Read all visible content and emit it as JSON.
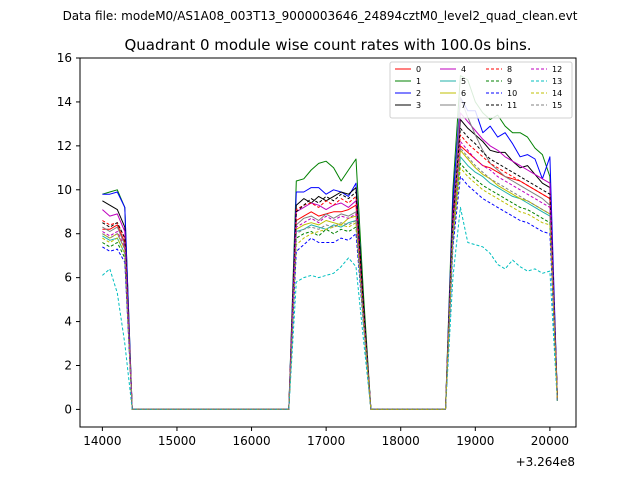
{
  "figure": {
    "suptitle": "Data file: modeM0/AS1A08_003T13_9000003646_24894cztM0_level2_quad_clean.evt",
    "offset_label": "+3.264e8"
  },
  "chart_data": {
    "type": "line",
    "title": "Quadrant 0 module wise count rates with 100.0s bins.",
    "xlabel": "",
    "ylabel": "",
    "x_offset_label": "+3.264e8",
    "xlim": [
      13700,
      20350
    ],
    "ylim": [
      -0.8,
      16
    ],
    "xticks": [
      14000,
      15000,
      16000,
      17000,
      18000,
      19000,
      20000
    ],
    "yticks": [
      0,
      2,
      4,
      6,
      8,
      10,
      12,
      14,
      16
    ],
    "grid": false,
    "legend_position": "top-right",
    "legend_columns": 4,
    "x": [
      14000,
      14100,
      14200,
      14300,
      14400,
      14500,
      16400,
      16500,
      16600,
      16700,
      16800,
      16900,
      17000,
      17100,
      17200,
      17300,
      17400,
      17500,
      17600,
      17700,
      18500,
      18600,
      18700,
      18800,
      18900,
      19000,
      19100,
      19200,
      19300,
      19400,
      19500,
      19600,
      19700,
      19800,
      19900,
      20000,
      20050,
      20100
    ],
    "series": [
      {
        "name": "0",
        "color": "#ff0000",
        "dashed": false,
        "values": [
          8.2,
          8.2,
          8.4,
          7.6,
          0,
          0,
          0,
          0,
          8.6,
          8.8,
          9.0,
          8.8,
          8.9,
          9.0,
          9.0,
          9.1,
          9.3,
          4.2,
          0,
          0,
          0,
          0,
          8.0,
          12.0,
          11.7,
          11.4,
          11.1,
          11.0,
          10.8,
          10.6,
          10.5,
          10.4,
          10.2,
          10.0,
          9.8,
          9.6,
          5.0,
          0.5
        ]
      },
      {
        "name": "1",
        "color": "#008000",
        "dashed": false,
        "values": [
          9.8,
          9.9,
          10.0,
          9.2,
          0,
          0,
          0,
          0,
          10.4,
          10.5,
          10.9,
          11.2,
          11.3,
          11.0,
          10.4,
          10.9,
          11.4,
          5.3,
          0,
          0,
          0,
          0,
          10.0,
          15.2,
          15.0,
          14.0,
          13.5,
          13.2,
          13.4,
          12.9,
          12.6,
          12.6,
          12.4,
          11.9,
          11.6,
          10.6,
          5.6,
          0.5
        ]
      },
      {
        "name": "2",
        "color": "#0000ff",
        "dashed": false,
        "values": [
          9.8,
          9.8,
          9.9,
          9.2,
          0,
          0,
          0,
          0,
          9.9,
          9.9,
          10.1,
          10.1,
          9.8,
          10.0,
          9.9,
          9.7,
          10.3,
          4.8,
          0,
          0,
          0,
          0,
          9.5,
          14.2,
          13.6,
          13.6,
          12.6,
          12.9,
          12.4,
          12.6,
          12.1,
          11.5,
          11.6,
          11.4,
          10.5,
          11.5,
          6.0,
          0.5
        ]
      },
      {
        "name": "3",
        "color": "#000000",
        "dashed": false,
        "values": [
          9.5,
          9.3,
          9.1,
          8.3,
          0,
          0,
          0,
          0,
          9.3,
          9.6,
          9.4,
          9.7,
          9.5,
          9.7,
          9.9,
          9.8,
          10.1,
          4.8,
          0,
          0,
          0,
          0,
          9.0,
          13.2,
          12.8,
          12.5,
          12.2,
          11.8,
          11.7,
          11.7,
          11.3,
          11.0,
          11.1,
          10.7,
          10.3,
          10.1,
          5.4,
          0.5
        ]
      },
      {
        "name": "4",
        "color": "#bf00bf",
        "dashed": false,
        "values": [
          9.1,
          8.8,
          8.9,
          8.1,
          0,
          0,
          0,
          0,
          9.0,
          9.2,
          9.4,
          9.3,
          9.1,
          9.3,
          9.4,
          9.2,
          9.5,
          4.5,
          0,
          0,
          0,
          0,
          8.8,
          13.5,
          13.1,
          12.7,
          12.3,
          12.0,
          11.8,
          11.5,
          11.3,
          11.1,
          10.9,
          10.7,
          10.5,
          10.3,
          5.3,
          0.5
        ]
      },
      {
        "name": "5",
        "color": "#20b2aa",
        "dashed": false,
        "values": [
          7.9,
          7.7,
          7.8,
          7.1,
          0,
          0,
          0,
          0,
          8.1,
          8.2,
          8.4,
          8.3,
          8.2,
          8.4,
          8.3,
          8.5,
          8.6,
          4.1,
          0,
          0,
          0,
          0,
          7.8,
          11.5,
          11.1,
          10.8,
          10.6,
          10.3,
          10.1,
          9.9,
          9.7,
          9.6,
          9.4,
          9.2,
          9.0,
          8.8,
          4.6,
          0.4
        ]
      },
      {
        "name": "6",
        "color": "#bfbf00",
        "dashed": false,
        "values": [
          8.0,
          7.8,
          8.0,
          7.3,
          0,
          0,
          0,
          0,
          8.2,
          8.4,
          8.5,
          8.4,
          8.6,
          8.5,
          8.4,
          8.7,
          8.8,
          4.2,
          0,
          0,
          0,
          0,
          8.0,
          11.8,
          11.4,
          11.0,
          10.7,
          10.5,
          10.2,
          10.0,
          9.8,
          9.6,
          9.5,
          9.3,
          9.1,
          8.9,
          4.7,
          0.4
        ]
      },
      {
        "name": "7",
        "color": "#808080",
        "dashed": false,
        "values": [
          8.3,
          8.1,
          8.3,
          7.5,
          0,
          0,
          0,
          0,
          8.4,
          8.7,
          8.8,
          8.6,
          8.9,
          8.7,
          8.9,
          8.8,
          9.0,
          4.3,
          0,
          0,
          0,
          0,
          8.3,
          14.2,
          13.3,
          12.5,
          11.8,
          11.2,
          10.9,
          10.6,
          10.4,
          10.2,
          10.0,
          9.8,
          9.6,
          9.3,
          4.9,
          0.4
        ]
      },
      {
        "name": "8",
        "color": "#ff0000",
        "dashed": true,
        "values": [
          8.6,
          8.4,
          8.5,
          7.8,
          0,
          0,
          0,
          0,
          9.1,
          9.3,
          9.4,
          9.2,
          9.5,
          9.3,
          9.6,
          9.4,
          9.7,
          4.6,
          0,
          0,
          0,
          0,
          8.5,
          12.5,
          12.1,
          11.8,
          11.5,
          11.2,
          11.0,
          10.8,
          10.6,
          10.4,
          10.2,
          10.0,
          9.8,
          9.6,
          5.1,
          0.5
        ]
      },
      {
        "name": "9",
        "color": "#008000",
        "dashed": true,
        "values": [
          7.6,
          7.4,
          7.6,
          6.9,
          0,
          0,
          0,
          0,
          7.8,
          8.0,
          8.1,
          7.9,
          8.2,
          8.0,
          8.2,
          8.1,
          8.3,
          4.0,
          0,
          0,
          0,
          0,
          7.6,
          11.2,
          10.8,
          10.5,
          10.2,
          10.0,
          9.8,
          9.6,
          9.4,
          9.2,
          9.1,
          8.9,
          8.7,
          8.5,
          4.5,
          0.4
        ]
      },
      {
        "name": "10",
        "color": "#0000ff",
        "dashed": true,
        "values": [
          7.4,
          7.2,
          7.3,
          6.7,
          0,
          0,
          0,
          0,
          7.2,
          7.5,
          7.8,
          7.6,
          7.6,
          7.6,
          7.8,
          7.7,
          8.0,
          3.9,
          0,
          0,
          0,
          0,
          7.4,
          10.6,
          10.2,
          9.9,
          9.6,
          9.4,
          9.2,
          9.0,
          8.8,
          8.6,
          8.5,
          8.3,
          8.1,
          8.0,
          4.2,
          0.4
        ]
      },
      {
        "name": "11",
        "color": "#000000",
        "dashed": true,
        "values": [
          8.5,
          8.3,
          8.5,
          7.8,
          0,
          0,
          0,
          0,
          9.0,
          9.3,
          9.6,
          9.4,
          9.7,
          9.5,
          9.8,
          9.6,
          9.9,
          4.7,
          0,
          0,
          0,
          0,
          8.6,
          12.8,
          12.4,
          12.1,
          11.7,
          11.4,
          11.2,
          11.0,
          10.8,
          10.6,
          10.4,
          10.2,
          10.0,
          9.8,
          5.2,
          0.5
        ]
      },
      {
        "name": "12",
        "color": "#bf00bf",
        "dashed": true,
        "values": [
          8.1,
          7.9,
          8.1,
          7.4,
          0,
          0,
          0,
          0,
          8.3,
          8.5,
          8.7,
          8.5,
          8.8,
          8.6,
          8.8,
          8.7,
          8.9,
          4.3,
          0,
          0,
          0,
          0,
          8.2,
          12.2,
          11.8,
          11.4,
          11.1,
          10.9,
          10.6,
          10.4,
          10.2,
          10.0,
          9.8,
          9.6,
          9.4,
          9.2,
          4.9,
          0.4
        ]
      },
      {
        "name": "13",
        "color": "#00bfbf",
        "dashed": true,
        "values": [
          6.1,
          6.4,
          5.3,
          3.0,
          0,
          0,
          0,
          0,
          5.8,
          6.0,
          6.1,
          6.0,
          6.1,
          6.2,
          6.5,
          6.9,
          6.5,
          3.2,
          0,
          0,
          0,
          0,
          6.0,
          9.2,
          7.6,
          7.5,
          7.4,
          7.1,
          6.6,
          6.4,
          6.8,
          6.5,
          6.3,
          6.4,
          6.2,
          6.3,
          3.3,
          0.3
        ]
      },
      {
        "name": "14",
        "color": "#bfbf00",
        "dashed": true,
        "values": [
          7.8,
          7.6,
          7.8,
          7.1,
          0,
          0,
          0,
          0,
          7.5,
          7.8,
          8.0,
          8.1,
          8.2,
          8.3,
          8.4,
          8.3,
          8.5,
          4.0,
          0,
          0,
          0,
          0,
          7.8,
          11.0,
          10.6,
          10.3,
          10.0,
          9.8,
          9.6,
          9.4,
          9.2,
          9.0,
          8.9,
          8.7,
          8.5,
          8.4,
          4.4,
          0.4
        ]
      },
      {
        "name": "15",
        "color": "#808080",
        "dashed": true,
        "values": [
          8.0,
          7.8,
          8.0,
          7.3,
          0,
          0,
          0,
          0,
          8.0,
          8.2,
          8.3,
          8.2,
          8.4,
          8.3,
          8.5,
          8.4,
          8.6,
          4.1,
          0,
          0,
          0,
          0,
          8.0,
          11.9,
          11.5,
          11.1,
          10.8,
          10.5,
          10.3,
          10.1,
          9.9,
          9.7,
          9.5,
          9.3,
          9.1,
          8.9,
          4.7,
          0.4
        ]
      }
    ]
  }
}
